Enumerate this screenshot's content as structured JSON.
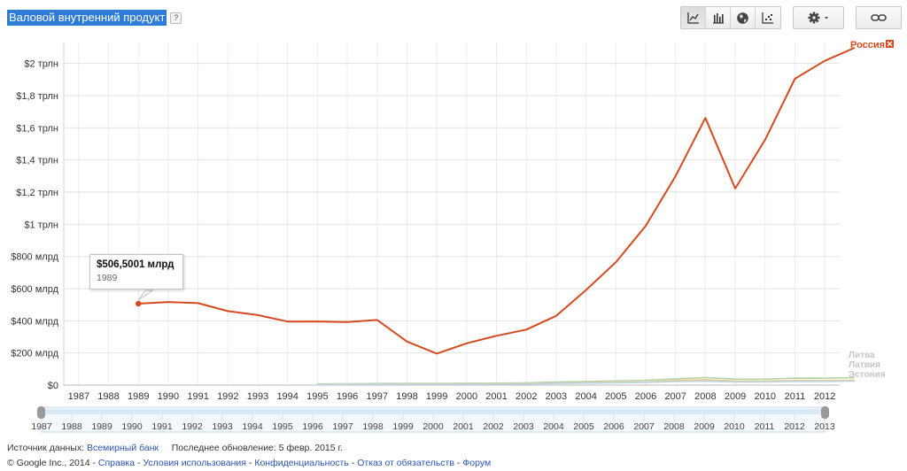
{
  "title": "Валовой внутренний продукт",
  "help_label": "?",
  "toolbar": {
    "chart_types": [
      {
        "name": "line-chart-icon",
        "active": true
      },
      {
        "name": "bar-chart-icon",
        "active": false
      },
      {
        "name": "map-icon",
        "active": false
      },
      {
        "name": "scatter-icon",
        "active": false
      }
    ]
  },
  "chart_data": {
    "type": "line",
    "x": [
      1989,
      1990,
      1991,
      1992,
      1993,
      1994,
      1995,
      1996,
      1997,
      1998,
      1999,
      2000,
      2001,
      2002,
      2003,
      2004,
      2005,
      2006,
      2007,
      2008,
      2009,
      2010,
      2011,
      2012,
      2013
    ],
    "series": [
      {
        "name": "Россия",
        "color": "#d64a1f",
        "values": [
          506.5,
          516.8,
          509.4,
          460.2,
          435.1,
          395.1,
          395.5,
          391.7,
          404.9,
          271.0,
          195.9,
          259.7,
          306.6,
          345.1,
          430.3,
          591.0,
          764.0,
          989.9,
          1299.7,
          1660.8,
          1222.6,
          1524.9,
          1904.8,
          2016.1,
          2097.0
        ]
      },
      {
        "name": "Литва",
        "color": "#b7d3a6",
        "values": [
          null,
          null,
          null,
          null,
          null,
          null,
          7.9,
          8.5,
          9.8,
          11.0,
          10.7,
          11.5,
          12.3,
          14.2,
          18.8,
          22.8,
          26.1,
          30.2,
          39.1,
          47.3,
          37.4,
          37.1,
          43.5,
          42.8,
          46.4
        ]
      },
      {
        "name": "Латвия",
        "color": "#e6c889",
        "values": [
          null,
          null,
          null,
          null,
          null,
          null,
          5.6,
          5.9,
          6.6,
          7.1,
          7.5,
          7.9,
          8.3,
          9.3,
          11.2,
          13.7,
          16.0,
          19.9,
          28.8,
          33.7,
          25.9,
          24.0,
          28.5,
          28.3,
          30.3
        ]
      },
      {
        "name": "Эстония",
        "color": "#bcd6e6",
        "values": [
          null,
          null,
          null,
          null,
          null,
          null,
          4.1,
          4.7,
          5.0,
          5.6,
          5.6,
          5.7,
          6.3,
          7.3,
          9.8,
          12.0,
          14.0,
          16.9,
          22.2,
          24.2,
          19.7,
          19.5,
          23.2,
          22.4,
          24.9
        ]
      }
    ],
    "y_ticks": [
      "$0",
      "$200 млрд",
      "$400 млрд",
      "$600 млрд",
      "$800 млрд",
      "$1 трлн",
      "$1,2 трлн",
      "$1,4 трлн",
      "$1,6 трлн",
      "$1,8 трлн",
      "$2 трлн"
    ],
    "y_tick_values": [
      0,
      200,
      400,
      600,
      800,
      1000,
      1200,
      1400,
      1600,
      1800,
      2000
    ],
    "ylim": [
      0,
      2130
    ],
    "x_ticks": [
      "1987",
      "1988",
      "1989",
      "1990",
      "1991",
      "1992",
      "1993",
      "1994",
      "1995",
      "1996",
      "1997",
      "1998",
      "1999",
      "2000",
      "2001",
      "2002",
      "2003",
      "2004",
      "2005",
      "2006",
      "2007",
      "2008",
      "2009",
      "2010",
      "2011",
      "2012"
    ],
    "timeline_ticks": [
      "1987",
      "1988",
      "1989",
      "1990",
      "1991",
      "1992",
      "1993",
      "1994",
      "1995",
      "1996",
      "1997",
      "1998",
      "1999",
      "2000",
      "2001",
      "2002",
      "2003",
      "2004",
      "2005",
      "2006",
      "2007",
      "2008",
      "2009",
      "2010",
      "2011",
      "2012",
      "2013"
    ],
    "grid": true,
    "legend_placement": "right"
  },
  "tooltip": {
    "value": "$506,5001 млрд",
    "year": "1989",
    "point_x": 1989,
    "point_y": 506.5
  },
  "footer": {
    "source_label": "Источник данных:",
    "source_link": "Всемирный банк",
    "updated": "Последнее обновление: 5 февр. 2015 г.",
    "copyright": "© Google Inc., 2014",
    "links": [
      "Справка",
      "Условия использования",
      "Конфиденциальность",
      "Отказ от обязательств",
      "Форум"
    ]
  }
}
